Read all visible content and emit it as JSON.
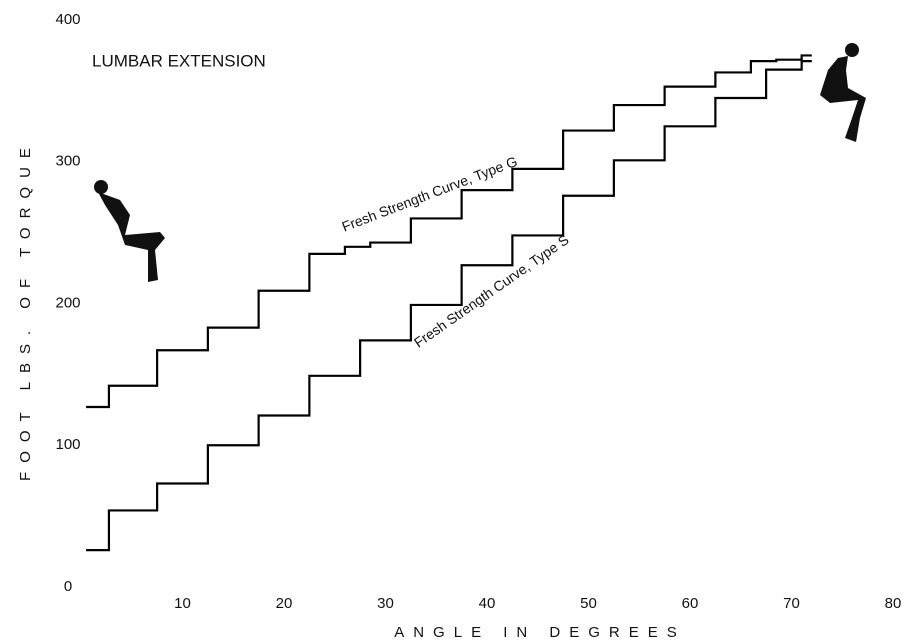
{
  "chart_data": {
    "type": "line",
    "title": "LUMBAR EXTENSION",
    "x_label": "ANGLE IN DEGREES",
    "y_label": "FOOT LBS. OF TORQUE",
    "xlim": [
      0,
      80
    ],
    "xticks": [
      10,
      20,
      30,
      40,
      50,
      60,
      70,
      80
    ],
    "ylim": [
      0,
      400
    ],
    "yticks": [
      0,
      100,
      200,
      300,
      400
    ],
    "series": [
      {
        "name": "Fresh Strength Curve, Type G",
        "color": "#000000",
        "x": [
          0.5,
          5,
          10,
          15,
          20,
          25,
          27,
          30,
          35,
          40,
          45,
          50,
          55,
          60,
          65,
          67,
          70,
          72
        ],
        "values": [
          127,
          142,
          167,
          183,
          209,
          235,
          240,
          243,
          260,
          280,
          295,
          322,
          340,
          353,
          363,
          371,
          372,
          375
        ]
      },
      {
        "name": "Fresh Strength Curve, Type S",
        "color": "#000000",
        "x": [
          0.5,
          5,
          10,
          15,
          20,
          25,
          30,
          35,
          40,
          45,
          50,
          55,
          60,
          65,
          70,
          72
        ],
        "values": [
          26,
          54,
          73,
          100,
          121,
          149,
          174,
          199,
          227,
          248,
          276,
          301,
          325,
          345,
          365,
          371
        ]
      }
    ]
  }
}
